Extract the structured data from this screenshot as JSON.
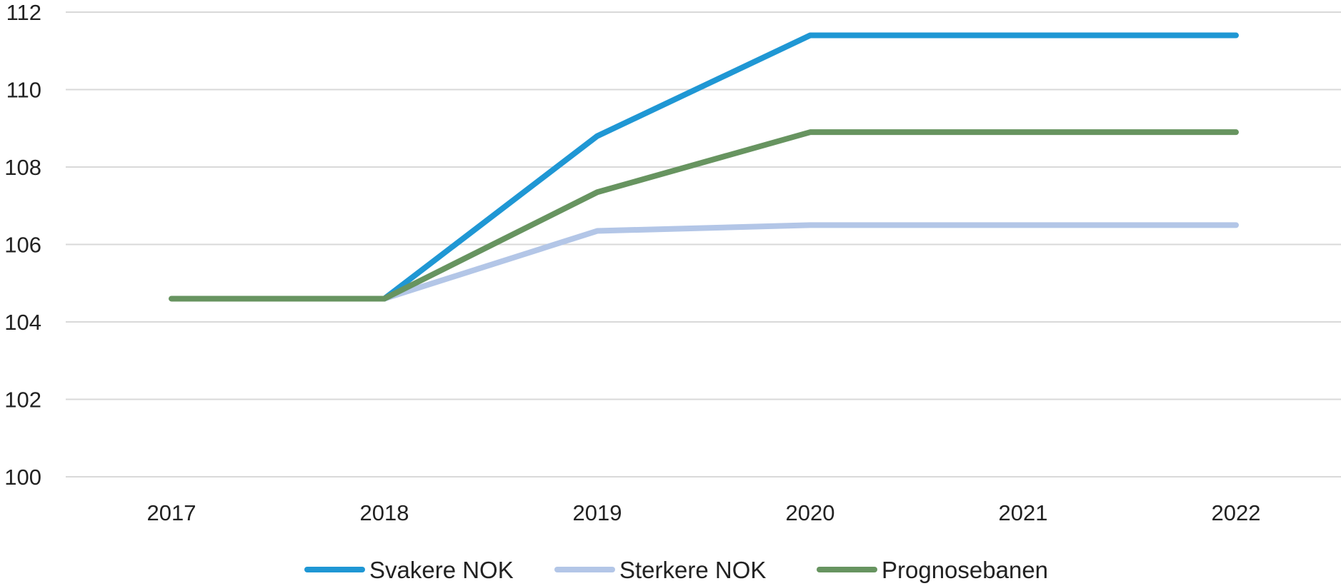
{
  "chart_data": {
    "type": "line",
    "title": "",
    "xlabel": "",
    "ylabel": "",
    "x": [
      "2017",
      "2018",
      "2019",
      "2020",
      "2021",
      "2022"
    ],
    "y_ticks": [
      "100",
      "102",
      "104",
      "106",
      "108",
      "110",
      "112"
    ],
    "ylim": [
      100,
      112
    ],
    "grid": true,
    "legend_position": "bottom",
    "series": [
      {
        "name": "Svakere NOK",
        "color": "#1f97d4",
        "values": [
          null,
          104.6,
          108.8,
          111.4,
          111.4,
          111.4
        ]
      },
      {
        "name": "Sterkere NOK",
        "color": "#b3c6e7",
        "values": [
          null,
          104.6,
          106.35,
          106.5,
          106.5,
          106.5
        ]
      },
      {
        "name": "Prognosebanen",
        "color": "#679460",
        "values": [
          104.6,
          104.6,
          107.35,
          108.9,
          108.9,
          108.9
        ]
      }
    ]
  }
}
